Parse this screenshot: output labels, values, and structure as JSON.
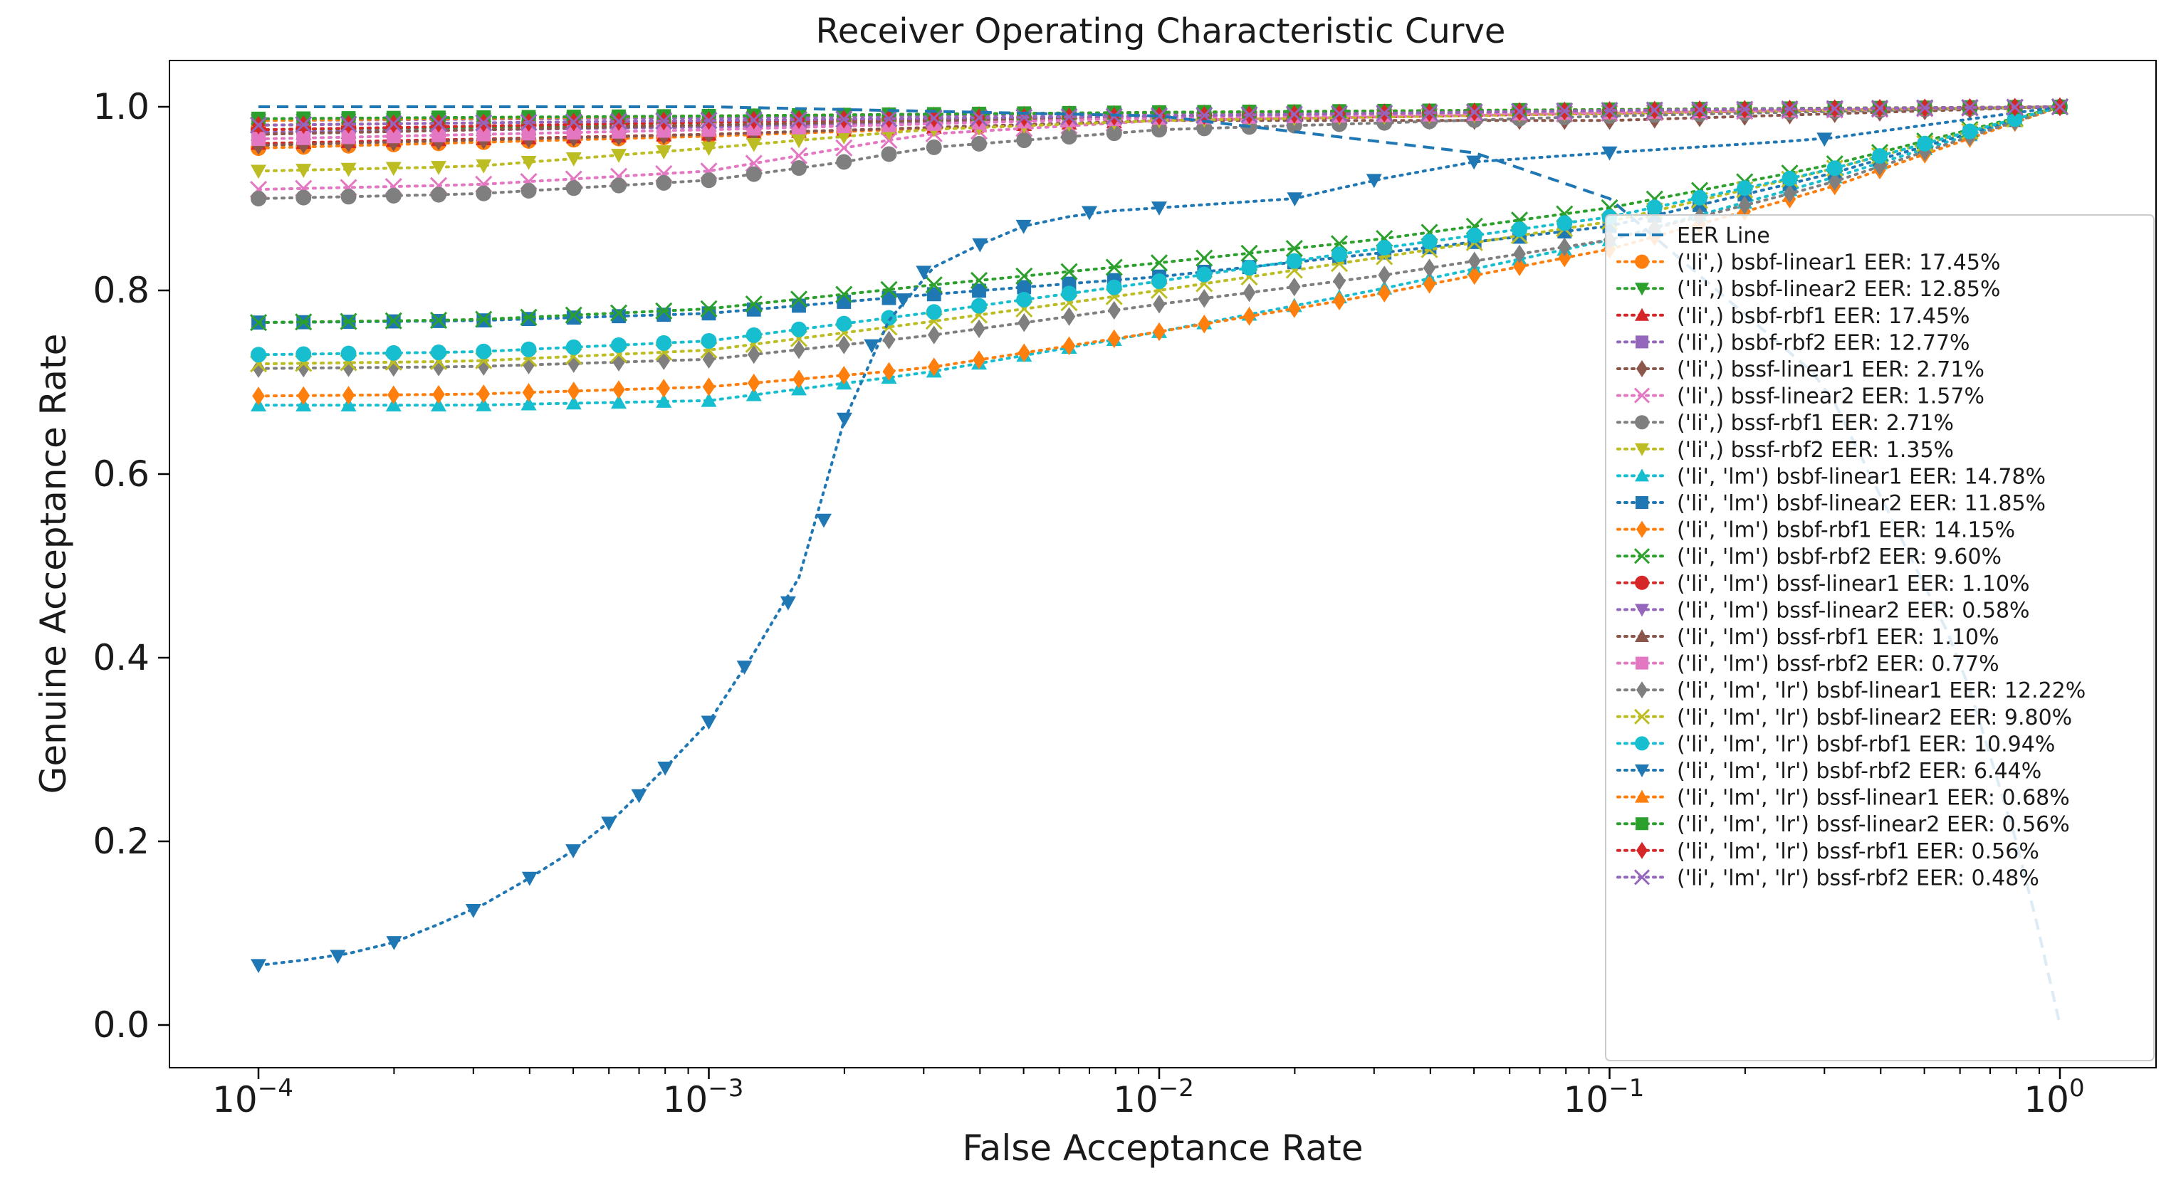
{
  "chart_data": {
    "type": "line",
    "title": "Receiver Operating Characteristic Curve",
    "xlabel": "False Acceptance Rate",
    "ylabel": "Genuine Acceptance Rate",
    "xscale": "log",
    "xlim": [
      0.0001,
      1
    ],
    "ylim": [
      0.0,
      1.0
    ],
    "xticks": [
      {
        "value": 0.0001,
        "base": "10",
        "exp": "−4"
      },
      {
        "value": 0.001,
        "base": "10",
        "exp": "−3"
      },
      {
        "value": 0.01,
        "base": "10",
        "exp": "−2"
      },
      {
        "value": 0.1,
        "base": "10",
        "exp": "−1"
      },
      {
        "value": 1,
        "base": "10",
        "exp": "0"
      }
    ],
    "yticks": [
      {
        "value": 0.0,
        "label": "0.0"
      },
      {
        "value": 0.2,
        "label": "0.2"
      },
      {
        "value": 0.4,
        "label": "0.4"
      },
      {
        "value": 0.6,
        "label": "0.6"
      },
      {
        "value": 0.8,
        "label": "0.8"
      },
      {
        "value": 1.0,
        "label": "1.0"
      }
    ],
    "legend_position": "right",
    "eer_line": {
      "name": "EER Line",
      "color": "#1f77b4",
      "style": "dashed",
      "x": [
        0.0001,
        0.001,
        0.01,
        0.05,
        0.1,
        0.3,
        0.6,
        0.8,
        0.9,
        1.0
      ],
      "y": [
        1.0,
        1.0,
        0.99,
        0.95,
        0.9,
        0.7,
        0.4,
        0.2,
        0.1,
        0.0
      ]
    },
    "series": [
      {
        "name": "('li',) bsbf-linear1 EER: 17.45%",
        "color": "#ff7f0e",
        "marker": "circle",
        "x": [
          0.0001,
          0.001,
          0.01,
          0.1,
          1.0
        ],
        "y": [
          0.955,
          0.968,
          0.985,
          0.993,
          1.0
        ]
      },
      {
        "name": "('li',) bsbf-linear2 EER: 12.85%",
        "color": "#2ca02c",
        "marker": "triangle-down",
        "x": [
          0.0001,
          0.001,
          0.01,
          0.1,
          1.0
        ],
        "y": [
          0.975,
          0.98,
          0.99,
          0.995,
          1.0
        ]
      },
      {
        "name": "('li',) bsbf-rbf1 EER: 17.45%",
        "color": "#d62728",
        "marker": "triangle-up",
        "x": [
          0.0001,
          0.001,
          0.01,
          0.1,
          1.0
        ],
        "y": [
          0.96,
          0.97,
          0.985,
          0.993,
          1.0
        ]
      },
      {
        "name": "('li',) bsbf-rbf2 EER: 12.77%",
        "color": "#9467bd",
        "marker": "square",
        "x": [
          0.0001,
          0.001,
          0.01,
          0.1,
          1.0
        ],
        "y": [
          0.972,
          0.978,
          0.988,
          0.994,
          1.0
        ]
      },
      {
        "name": "('li',) bssf-linear1 EER: 2.71%",
        "color": "#8c564b",
        "marker": "diamond",
        "x": [
          0.0001,
          0.001,
          0.01,
          0.1,
          1.0
        ],
        "y": [
          0.958,
          0.97,
          0.985,
          0.985,
          1.0
        ]
      },
      {
        "name": "('li',) bssf-linear2 EER: 1.57%",
        "color": "#e377c2",
        "marker": "x",
        "x": [
          0.0001,
          0.0003,
          0.001,
          0.003,
          0.01,
          0.1,
          1.0
        ],
        "y": [
          0.91,
          0.915,
          0.93,
          0.97,
          0.985,
          0.993,
          1.0
        ]
      },
      {
        "name": "('li',) bssf-rbf1 EER: 2.71%",
        "color": "#7f7f7f",
        "marker": "circle",
        "x": [
          0.0001,
          0.0003,
          0.001,
          0.002,
          0.003,
          0.01,
          0.1,
          1.0
        ],
        "y": [
          0.9,
          0.905,
          0.92,
          0.94,
          0.955,
          0.975,
          0.99,
          1.0
        ]
      },
      {
        "name": "('li',) bssf-rbf2 EER: 1.35%",
        "color": "#bcbd22",
        "marker": "triangle-down",
        "x": [
          0.0001,
          0.0003,
          0.001,
          0.003,
          0.01,
          0.1,
          1.0
        ],
        "y": [
          0.93,
          0.935,
          0.955,
          0.975,
          0.985,
          0.993,
          1.0
        ]
      },
      {
        "name": "('li', 'lm') bsbf-linear1 EER: 14.78%",
        "color": "#17becf",
        "marker": "triangle-up",
        "x": [
          0.0001,
          0.0003,
          0.001,
          0.003,
          0.01,
          0.03,
          0.1,
          0.3,
          1.0
        ],
        "y": [
          0.675,
          0.675,
          0.68,
          0.71,
          0.755,
          0.8,
          0.855,
          0.92,
          1.0
        ]
      },
      {
        "name": "('li', 'lm') bsbf-linear2 EER: 11.85%",
        "color": "#1f77b4",
        "marker": "square",
        "x": [
          0.0001,
          0.0003,
          0.001,
          0.003,
          0.01,
          0.03,
          0.1,
          0.3,
          1.0
        ],
        "y": [
          0.765,
          0.767,
          0.775,
          0.795,
          0.815,
          0.84,
          0.87,
          0.925,
          1.0
        ]
      },
      {
        "name": "('li', 'lm') bsbf-rbf1 EER: 14.15%",
        "color": "#ff7f0e",
        "marker": "diamond",
        "x": [
          0.0001,
          0.0003,
          0.001,
          0.003,
          0.01,
          0.03,
          0.1,
          0.3,
          1.0
        ],
        "y": [
          0.685,
          0.687,
          0.695,
          0.715,
          0.755,
          0.795,
          0.845,
          0.91,
          1.0
        ]
      },
      {
        "name": "('li', 'lm') bsbf-rbf2 EER: 9.60%",
        "color": "#2ca02c",
        "marker": "x",
        "x": [
          0.0001,
          0.0003,
          0.001,
          0.003,
          0.01,
          0.03,
          0.1,
          0.3,
          1.0
        ],
        "y": [
          0.765,
          0.768,
          0.78,
          0.805,
          0.83,
          0.855,
          0.89,
          0.935,
          1.0
        ]
      },
      {
        "name": "('li', 'lm') bssf-linear1 EER: 1.10%",
        "color": "#d62728",
        "marker": "circle",
        "x": [
          0.0001,
          0.001,
          0.01,
          0.1,
          1.0
        ],
        "y": [
          0.975,
          0.983,
          0.99,
          0.995,
          1.0
        ]
      },
      {
        "name": "('li', 'lm') bssf-linear2 EER: 0.58%",
        "color": "#9467bd",
        "marker": "triangle-down",
        "x": [
          0.0001,
          0.001,
          0.01,
          0.1,
          1.0
        ],
        "y": [
          0.985,
          0.988,
          0.993,
          0.996,
          1.0
        ]
      },
      {
        "name": "('li', 'lm') bssf-rbf1 EER: 1.10%",
        "color": "#8c564b",
        "marker": "triangle-up",
        "x": [
          0.0001,
          0.001,
          0.01,
          0.1,
          1.0
        ],
        "y": [
          0.97,
          0.98,
          0.99,
          0.995,
          1.0
        ]
      },
      {
        "name": "('li', 'lm') bssf-rbf2 EER: 0.77%",
        "color": "#e377c2",
        "marker": "square",
        "x": [
          0.0001,
          0.001,
          0.01,
          0.1,
          1.0
        ],
        "y": [
          0.965,
          0.975,
          0.988,
          0.994,
          1.0
        ]
      },
      {
        "name": "('li', 'lm', 'lr') bsbf-linear1 EER: 12.22%",
        "color": "#7f7f7f",
        "marker": "diamond",
        "x": [
          0.0001,
          0.0003,
          0.001,
          0.003,
          0.01,
          0.03,
          0.1,
          0.3,
          1.0
        ],
        "y": [
          0.715,
          0.717,
          0.725,
          0.75,
          0.785,
          0.815,
          0.855,
          0.915,
          1.0
        ]
      },
      {
        "name": "('li', 'lm', 'lr') bsbf-linear2 EER: 9.80%",
        "color": "#bcbd22",
        "marker": "x",
        "x": [
          0.0001,
          0.0003,
          0.001,
          0.003,
          0.01,
          0.03,
          0.1,
          0.3,
          1.0
        ],
        "y": [
          0.72,
          0.723,
          0.735,
          0.765,
          0.8,
          0.835,
          0.875,
          0.93,
          1.0
        ]
      },
      {
        "name": "('li', 'lm', 'lr') bsbf-rbf1 EER: 10.94%",
        "color": "#17becf",
        "marker": "circle",
        "x": [
          0.0001,
          0.0003,
          0.001,
          0.003,
          0.01,
          0.03,
          0.1,
          0.3,
          1.0
        ],
        "y": [
          0.73,
          0.733,
          0.745,
          0.775,
          0.81,
          0.845,
          0.88,
          0.93,
          1.0
        ]
      },
      {
        "name": "('li', 'lm', 'lr') bsbf-rbf2 EER: 6.44%",
        "color": "#1f77b4",
        "marker": "triangle-down",
        "x": [
          0.0001,
          0.00015,
          0.0002,
          0.0003,
          0.0004,
          0.0005,
          0.0006,
          0.0007,
          0.0008,
          0.001,
          0.0012,
          0.0015,
          0.0018,
          0.002,
          0.0023,
          0.0027,
          0.003,
          0.004,
          0.005,
          0.007,
          0.01,
          0.02,
          0.03,
          0.05,
          0.1,
          0.3,
          1.0
        ],
        "y": [
          0.065,
          0.075,
          0.09,
          0.125,
          0.16,
          0.19,
          0.22,
          0.25,
          0.28,
          0.33,
          0.39,
          0.46,
          0.55,
          0.66,
          0.74,
          0.79,
          0.82,
          0.85,
          0.87,
          0.885,
          0.89,
          0.9,
          0.92,
          0.94,
          0.95,
          0.965,
          1.0
        ]
      },
      {
        "name": "('li', 'lm', 'lr') bssf-linear1 EER: 0.68%",
        "color": "#ff7f0e",
        "marker": "triangle-up",
        "x": [
          0.0001,
          0.001,
          0.01,
          0.1,
          1.0
        ],
        "y": [
          0.985,
          0.99,
          0.994,
          0.997,
          1.0
        ]
      },
      {
        "name": "('li', 'lm', 'lr') bssf-linear2 EER: 0.56%",
        "color": "#2ca02c",
        "marker": "square",
        "x": [
          0.0001,
          0.001,
          0.01,
          0.1,
          1.0
        ],
        "y": [
          0.987,
          0.99,
          0.994,
          0.997,
          1.0
        ]
      },
      {
        "name": "('li', 'lm', 'lr') bssf-rbf1 EER: 0.56%",
        "color": "#d62728",
        "marker": "diamond",
        "x": [
          0.0001,
          0.001,
          0.01,
          0.1,
          1.0
        ],
        "y": [
          0.98,
          0.985,
          0.99,
          0.996,
          1.0
        ]
      },
      {
        "name": "('li', 'lm', 'lr') bssf-rbf2 EER: 0.48%",
        "color": "#9467bd",
        "marker": "x",
        "x": [
          0.0001,
          0.001,
          0.01,
          0.1,
          1.0
        ],
        "y": [
          0.98,
          0.985,
          0.99,
          0.996,
          1.0
        ]
      }
    ]
  }
}
